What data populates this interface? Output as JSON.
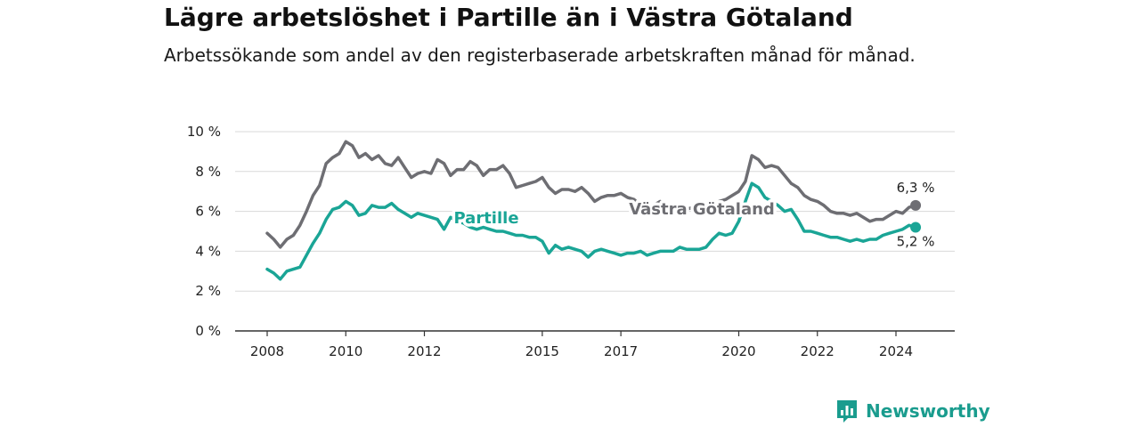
{
  "header": {
    "title": "Lägre arbetslöshet i Partille än i Västra Götaland",
    "subtitle": "Arbetssökande som andel av den registerbaserade arbetskraften månad för månad."
  },
  "brand": {
    "name": "Newsworthy"
  },
  "colors": {
    "partille": "#1aa596",
    "vastra_gotaland": "#6e6e73",
    "grid": "#d9d9d9",
    "axis": "#333333"
  },
  "chart_data": {
    "type": "line",
    "title": "Lägre arbetslöshet i Partille än i Västra Götaland",
    "ylabel": "",
    "xlabel": "",
    "ylim": [
      0,
      10
    ],
    "y_ticks": [
      "10 %",
      "8 %",
      "6 %",
      "4 %",
      "2 %",
      "0 %"
    ],
    "x_ticks": [
      "2008",
      "2010",
      "2012",
      "2015",
      "2017",
      "2020",
      "2022",
      "2024"
    ],
    "series": [
      {
        "name": "Västra Götaland",
        "end_label": "6,3 %",
        "points": [
          [
            "2008-01",
            4.9
          ],
          [
            "2008-03",
            4.6
          ],
          [
            "2008-05",
            4.2
          ],
          [
            "2008-07",
            4.6
          ],
          [
            "2008-09",
            4.8
          ],
          [
            "2008-11",
            5.3
          ],
          [
            "2009-01",
            6.0
          ],
          [
            "2009-03",
            6.8
          ],
          [
            "2009-05",
            7.3
          ],
          [
            "2009-07",
            8.4
          ],
          [
            "2009-09",
            8.7
          ],
          [
            "2009-11",
            8.9
          ],
          [
            "2010-01",
            9.5
          ],
          [
            "2010-03",
            9.3
          ],
          [
            "2010-05",
            8.7
          ],
          [
            "2010-07",
            8.9
          ],
          [
            "2010-09",
            8.6
          ],
          [
            "2010-11",
            8.8
          ],
          [
            "2011-01",
            8.4
          ],
          [
            "2011-03",
            8.3
          ],
          [
            "2011-05",
            8.7
          ],
          [
            "2011-07",
            8.2
          ],
          [
            "2011-09",
            7.7
          ],
          [
            "2011-11",
            7.9
          ],
          [
            "2012-01",
            8.0
          ],
          [
            "2012-03",
            7.9
          ],
          [
            "2012-05",
            8.6
          ],
          [
            "2012-07",
            8.4
          ],
          [
            "2012-09",
            7.8
          ],
          [
            "2012-11",
            8.1
          ],
          [
            "2013-01",
            8.1
          ],
          [
            "2013-03",
            8.5
          ],
          [
            "2013-05",
            8.3
          ],
          [
            "2013-07",
            7.8
          ],
          [
            "2013-09",
            8.1
          ],
          [
            "2013-11",
            8.1
          ],
          [
            "2014-01",
            8.3
          ],
          [
            "2014-03",
            7.9
          ],
          [
            "2014-05",
            7.2
          ],
          [
            "2014-07",
            7.3
          ],
          [
            "2014-09",
            7.4
          ],
          [
            "2014-11",
            7.5
          ],
          [
            "2015-01",
            7.7
          ],
          [
            "2015-03",
            7.2
          ],
          [
            "2015-05",
            6.9
          ],
          [
            "2015-07",
            7.1
          ],
          [
            "2015-09",
            7.1
          ],
          [
            "2015-11",
            7.0
          ],
          [
            "2016-01",
            7.2
          ],
          [
            "2016-03",
            6.9
          ],
          [
            "2016-05",
            6.5
          ],
          [
            "2016-07",
            6.7
          ],
          [
            "2016-09",
            6.8
          ],
          [
            "2016-11",
            6.8
          ],
          [
            "2017-01",
            6.9
          ],
          [
            "2017-03",
            6.7
          ],
          [
            "2017-05",
            6.6
          ],
          [
            "2017-07",
            6.3
          ],
          [
            "2017-09",
            6.1
          ],
          [
            "2017-11",
            6.3
          ],
          [
            "2018-01",
            6.5
          ],
          [
            "2018-03",
            6.2
          ],
          [
            "2018-05",
            6.0
          ],
          [
            "2018-07",
            6.2
          ],
          [
            "2018-09",
            6.1
          ],
          [
            "2018-11",
            6.2
          ],
          [
            "2019-01",
            6.3
          ],
          [
            "2019-03",
            6.2
          ],
          [
            "2019-05",
            6.2
          ],
          [
            "2019-07",
            6.5
          ],
          [
            "2019-09",
            6.6
          ],
          [
            "2019-11",
            6.8
          ],
          [
            "2020-01",
            7.0
          ],
          [
            "2020-03",
            7.5
          ],
          [
            "2020-05",
            8.8
          ],
          [
            "2020-07",
            8.6
          ],
          [
            "2020-09",
            8.2
          ],
          [
            "2020-11",
            8.3
          ],
          [
            "2021-01",
            8.2
          ],
          [
            "2021-03",
            7.8
          ],
          [
            "2021-05",
            7.4
          ],
          [
            "2021-07",
            7.2
          ],
          [
            "2021-09",
            6.8
          ],
          [
            "2021-11",
            6.6
          ],
          [
            "2022-01",
            6.5
          ],
          [
            "2022-03",
            6.3
          ],
          [
            "2022-05",
            6.0
          ],
          [
            "2022-07",
            5.9
          ],
          [
            "2022-09",
            5.9
          ],
          [
            "2022-11",
            5.8
          ],
          [
            "2023-01",
            5.9
          ],
          [
            "2023-03",
            5.7
          ],
          [
            "2023-05",
            5.5
          ],
          [
            "2023-07",
            5.6
          ],
          [
            "2023-09",
            5.6
          ],
          [
            "2023-11",
            5.8
          ],
          [
            "2024-01",
            6.0
          ],
          [
            "2024-03",
            5.9
          ],
          [
            "2024-05",
            6.2
          ],
          [
            "2024-07",
            6.3
          ]
        ]
      },
      {
        "name": "Partille",
        "end_label": "5,2 %",
        "points": [
          [
            "2008-01",
            3.1
          ],
          [
            "2008-03",
            2.9
          ],
          [
            "2008-05",
            2.6
          ],
          [
            "2008-07",
            3.0
          ],
          [
            "2008-09",
            3.1
          ],
          [
            "2008-11",
            3.2
          ],
          [
            "2009-01",
            3.8
          ],
          [
            "2009-03",
            4.4
          ],
          [
            "2009-05",
            4.9
          ],
          [
            "2009-07",
            5.6
          ],
          [
            "2009-09",
            6.1
          ],
          [
            "2009-11",
            6.2
          ],
          [
            "2010-01",
            6.5
          ],
          [
            "2010-03",
            6.3
          ],
          [
            "2010-05",
            5.8
          ],
          [
            "2010-07",
            5.9
          ],
          [
            "2010-09",
            6.3
          ],
          [
            "2010-11",
            6.2
          ],
          [
            "2011-01",
            6.2
          ],
          [
            "2011-03",
            6.4
          ],
          [
            "2011-05",
            6.1
          ],
          [
            "2011-07",
            5.9
          ],
          [
            "2011-09",
            5.7
          ],
          [
            "2011-11",
            5.9
          ],
          [
            "2012-01",
            5.8
          ],
          [
            "2012-03",
            5.7
          ],
          [
            "2012-05",
            5.6
          ],
          [
            "2012-07",
            5.1
          ],
          [
            "2012-09",
            5.7
          ],
          [
            "2012-11",
            5.5
          ],
          [
            "2013-01",
            5.4
          ],
          [
            "2013-03",
            5.2
          ],
          [
            "2013-05",
            5.1
          ],
          [
            "2013-07",
            5.2
          ],
          [
            "2013-09",
            5.1
          ],
          [
            "2013-11",
            5.0
          ],
          [
            "2014-01",
            5.0
          ],
          [
            "2014-03",
            4.9
          ],
          [
            "2014-05",
            4.8
          ],
          [
            "2014-07",
            4.8
          ],
          [
            "2014-09",
            4.7
          ],
          [
            "2014-11",
            4.7
          ],
          [
            "2015-01",
            4.5
          ],
          [
            "2015-03",
            3.9
          ],
          [
            "2015-05",
            4.3
          ],
          [
            "2015-07",
            4.1
          ],
          [
            "2015-09",
            4.2
          ],
          [
            "2015-11",
            4.1
          ],
          [
            "2016-01",
            4.0
          ],
          [
            "2016-03",
            3.7
          ],
          [
            "2016-05",
            4.0
          ],
          [
            "2016-07",
            4.1
          ],
          [
            "2016-09",
            4.0
          ],
          [
            "2016-11",
            3.9
          ],
          [
            "2017-01",
            3.8
          ],
          [
            "2017-03",
            3.9
          ],
          [
            "2017-05",
            3.9
          ],
          [
            "2017-07",
            4.0
          ],
          [
            "2017-09",
            3.8
          ],
          [
            "2017-11",
            3.9
          ],
          [
            "2018-01",
            4.0
          ],
          [
            "2018-03",
            4.0
          ],
          [
            "2018-05",
            4.0
          ],
          [
            "2018-07",
            4.2
          ],
          [
            "2018-09",
            4.1
          ],
          [
            "2018-11",
            4.1
          ],
          [
            "2019-01",
            4.1
          ],
          [
            "2019-03",
            4.2
          ],
          [
            "2019-05",
            4.6
          ],
          [
            "2019-07",
            4.9
          ],
          [
            "2019-09",
            4.8
          ],
          [
            "2019-11",
            4.9
          ],
          [
            "2020-01",
            5.5
          ],
          [
            "2020-03",
            6.5
          ],
          [
            "2020-05",
            7.4
          ],
          [
            "2020-07",
            7.2
          ],
          [
            "2020-09",
            6.7
          ],
          [
            "2020-11",
            6.5
          ],
          [
            "2021-01",
            6.3
          ],
          [
            "2021-03",
            6.0
          ],
          [
            "2021-05",
            6.1
          ],
          [
            "2021-07",
            5.6
          ],
          [
            "2021-09",
            5.0
          ],
          [
            "2021-11",
            5.0
          ],
          [
            "2022-01",
            4.9
          ],
          [
            "2022-03",
            4.8
          ],
          [
            "2022-05",
            4.7
          ],
          [
            "2022-07",
            4.7
          ],
          [
            "2022-09",
            4.6
          ],
          [
            "2022-11",
            4.5
          ],
          [
            "2023-01",
            4.6
          ],
          [
            "2023-03",
            4.5
          ],
          [
            "2023-05",
            4.6
          ],
          [
            "2023-07",
            4.6
          ],
          [
            "2023-09",
            4.8
          ],
          [
            "2023-11",
            4.9
          ],
          [
            "2024-01",
            5.0
          ],
          [
            "2024-03",
            5.1
          ],
          [
            "2024-05",
            5.3
          ],
          [
            "2024-07",
            5.2
          ]
        ]
      }
    ]
  }
}
